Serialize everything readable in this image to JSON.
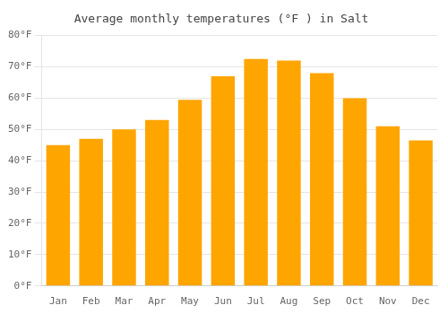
{
  "chart_data": {
    "type": "bar",
    "title": "Average monthly temperatures (°F ) in Salt",
    "categories": [
      "Jan",
      "Feb",
      "Mar",
      "Apr",
      "May",
      "Jun",
      "Jul",
      "Aug",
      "Sep",
      "Oct",
      "Nov",
      "Dec"
    ],
    "values": [
      45,
      47,
      50,
      53,
      59.5,
      67,
      72.5,
      72,
      68,
      60,
      51,
      46.5
    ],
    "color": "#FFA500",
    "ylim": [
      0,
      80
    ],
    "yticks": [
      {
        "value": 0,
        "label": "0°F"
      },
      {
        "value": 10,
        "label": "10°F"
      },
      {
        "value": 20,
        "label": "20°F"
      },
      {
        "value": 30,
        "label": "30°F"
      },
      {
        "value": 40,
        "label": "40°F"
      },
      {
        "value": 50,
        "label": "50°F"
      },
      {
        "value": 60,
        "label": "60°F"
      },
      {
        "value": 70,
        "label": "70°F"
      },
      {
        "value": 80,
        "label": "80°F"
      }
    ],
    "grid": true
  }
}
